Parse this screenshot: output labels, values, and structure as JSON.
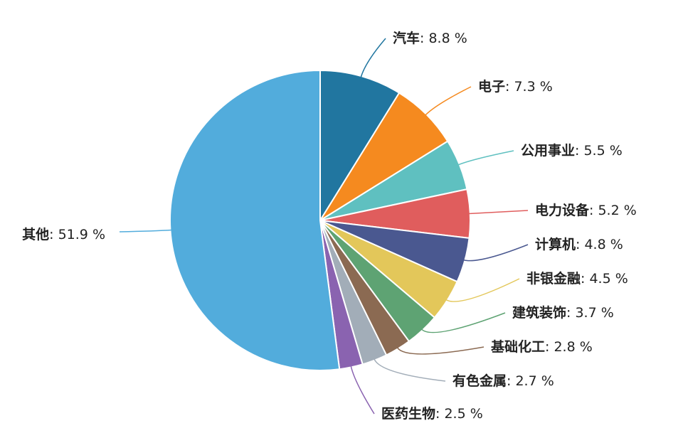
{
  "chart_data": {
    "type": "pie",
    "title": "",
    "start": "top",
    "direction": "clockwise",
    "slices": [
      {
        "label": "汽车",
        "value": 8.8,
        "display": "8.8 %",
        "color": "#2176a0"
      },
      {
        "label": "电子",
        "value": 7.3,
        "display": "7.3 %",
        "color": "#f58a1f"
      },
      {
        "label": "公用事业",
        "value": 5.5,
        "display": "5.5 %",
        "color": "#5fc0c0"
      },
      {
        "label": "电力设备",
        "value": 5.2,
        "display": "5.2 %",
        "color": "#e05d5d"
      },
      {
        "label": "计算机",
        "value": 4.8,
        "display": "4.8 %",
        "color": "#4a5890"
      },
      {
        "label": "非银金融",
        "value": 4.5,
        "display": "4.5 %",
        "color": "#e3c75a"
      },
      {
        "label": "建筑装饰",
        "value": 3.7,
        "display": "3.7 %",
        "color": "#5ea373"
      },
      {
        "label": "基础化工",
        "value": 2.8,
        "display": "2.8 %",
        "color": "#8b6a52"
      },
      {
        "label": "有色金属",
        "value": 2.7,
        "display": "2.7 %",
        "color": "#a2adb8"
      },
      {
        "label": "医药生物",
        "value": 2.5,
        "display": "2.5 %",
        "color": "#8a63b0"
      },
      {
        "label": "其他",
        "value": 51.9,
        "display": "51.9 %",
        "color": "#52acdc"
      }
    ]
  }
}
